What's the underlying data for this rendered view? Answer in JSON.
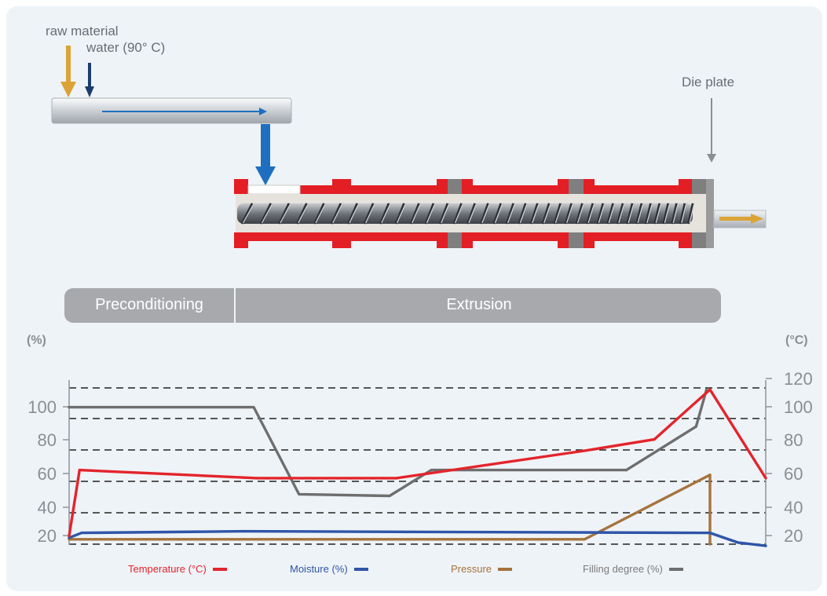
{
  "labels": {
    "raw_material": "raw material",
    "water": "water (90° C)",
    "die_plate": "Die plate",
    "stage_preconditioning": "Preconditioning",
    "stage_extrusion": "Extrusion"
  },
  "colors": {
    "temperature": "#e3242b",
    "moisture": "#2f55a8",
    "pressure": "#a5733d",
    "filling": "#6e6e6e",
    "arrow_gold": "#dba336",
    "arrow_navy": "#1b3d6e",
    "arrow_blue": "#1e6fc0",
    "barrel_red": "#e31e24",
    "barrel_gray": "#7f7f7f"
  },
  "chart_data": {
    "type": "line",
    "left_axis_label": "(%)",
    "right_axis_label": "(°C)",
    "left_ticks": [
      "100",
      "80",
      "60",
      "40",
      "20"
    ],
    "right_ticks": [
      "120",
      "100",
      "80",
      "60",
      "40",
      "20"
    ],
    "ylim": [
      15,
      112
    ],
    "x_range": [
      0,
      100
    ],
    "grid": "dashed horizontal",
    "legend_position": "bottom",
    "series": [
      {
        "name": "Temperature (°C)",
        "color": "#e3242b",
        "x": [
          0,
          1.5,
          27,
          47,
          74,
          84,
          92,
          100
        ],
        "y": [
          20,
          61,
          56,
          56,
          73,
          80,
          111,
          56
        ]
      },
      {
        "name": "Moisture (%)",
        "color": "#2f55a8",
        "x": [
          0,
          1.8,
          25,
          92,
          96,
          100
        ],
        "y": [
          19,
          22,
          23,
          22,
          16,
          14
        ]
      },
      {
        "name": "Pressure",
        "color": "#a5733d",
        "x": [
          0,
          1.8,
          74,
          92,
          92
        ],
        "y": [
          18,
          18,
          18,
          58,
          15
        ]
      },
      {
        "name": "Filling degree (%)",
        "color": "#6e6e6e",
        "x": [
          0,
          26.5,
          33,
          46,
          52,
          80,
          90,
          91.5
        ],
        "y": [
          100,
          100,
          46,
          45,
          61,
          61,
          88,
          111
        ]
      }
    ]
  }
}
